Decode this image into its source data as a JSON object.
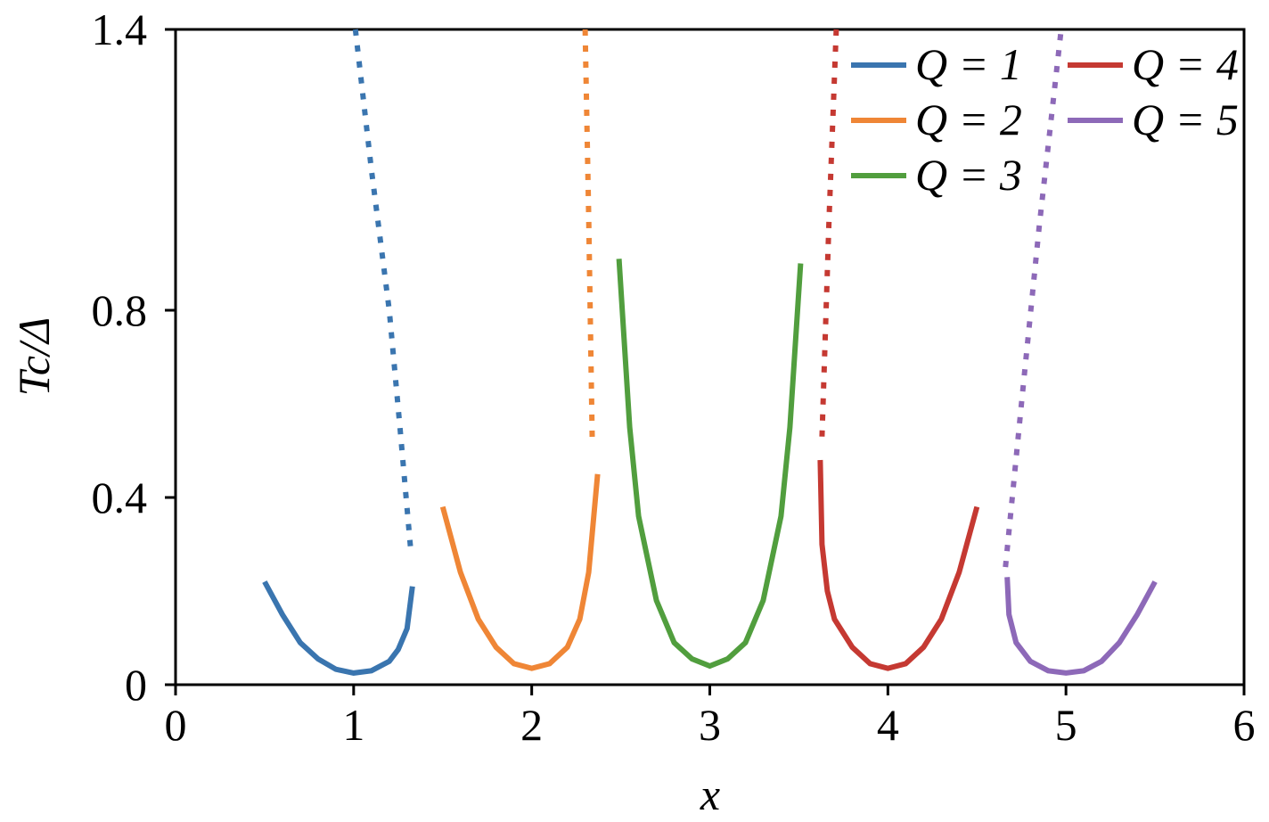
{
  "chart_data": {
    "type": "line",
    "xlabel": "x",
    "ylabel": "Tc/Δ",
    "xlim": [
      0,
      6
    ],
    "ylim": [
      0,
      1.4
    ],
    "xticks": [
      0,
      1,
      2,
      3,
      4,
      5,
      6
    ],
    "yticks": [
      0,
      0.4,
      0.8,
      1.4
    ],
    "legend": "upper right",
    "series": [
      {
        "name": "Q = 1",
        "color": "#3a75af",
        "x": [
          0.5,
          0.6,
          0.7,
          0.8,
          0.9,
          1.0,
          1.1,
          1.2,
          1.25,
          1.3,
          1.33
        ],
        "values": [
          0.22,
          0.15,
          0.09,
          0.055,
          0.033,
          0.025,
          0.03,
          0.05,
          0.075,
          0.12,
          0.21
        ]
      },
      {
        "name": "Q = 2",
        "color": "#ef8636",
        "x": [
          1.5,
          1.6,
          1.7,
          1.8,
          1.9,
          2.0,
          2.1,
          2.2,
          2.27,
          2.32,
          2.37
        ],
        "values": [
          0.38,
          0.24,
          0.14,
          0.08,
          0.045,
          0.035,
          0.045,
          0.08,
          0.14,
          0.24,
          0.45
        ]
      },
      {
        "name": "Q = 3",
        "color": "#519e3e",
        "x": [
          2.49,
          2.55,
          2.6,
          2.7,
          2.8,
          2.9,
          3.0,
          3.1,
          3.2,
          3.3,
          3.4,
          3.45,
          3.51
        ],
        "values": [
          0.91,
          0.55,
          0.36,
          0.18,
          0.09,
          0.055,
          0.04,
          0.055,
          0.09,
          0.18,
          0.36,
          0.55,
          0.9
        ]
      },
      {
        "name": "Q = 4",
        "color": "#c53932",
        "x": [
          3.62,
          3.63,
          3.66,
          3.7,
          3.8,
          3.9,
          4.0,
          4.1,
          4.2,
          4.3,
          4.4,
          4.5
        ],
        "values": [
          0.48,
          0.3,
          0.2,
          0.14,
          0.08,
          0.045,
          0.035,
          0.045,
          0.08,
          0.14,
          0.24,
          0.38
        ]
      },
      {
        "name": "Q = 5",
        "color": "#8d69b8",
        "x": [
          4.67,
          4.68,
          4.72,
          4.8,
          4.9,
          5.0,
          5.1,
          5.2,
          5.3,
          5.4,
          5.5
        ],
        "values": [
          0.23,
          0.15,
          0.09,
          0.05,
          0.03,
          0.025,
          0.03,
          0.05,
          0.09,
          0.15,
          0.22
        ]
      }
    ],
    "dotted_series": [
      {
        "color": "#3a75af",
        "x": [
          1.01,
          1.1,
          1.2,
          1.26,
          1.32
        ],
        "values": [
          1.4,
          1.1,
          0.8,
          0.55,
          0.29
        ]
      },
      {
        "color": "#ef8636",
        "x": [
          2.3,
          2.32,
          2.34
        ],
        "values": [
          1.4,
          1.0,
          0.52
        ]
      },
      {
        "color": "#c53932",
        "x": [
          3.71,
          3.67,
          3.63
        ],
        "values": [
          1.4,
          1.0,
          0.53
        ]
      },
      {
        "color": "#8d69b8",
        "x": [
          4.97,
          4.85,
          4.75,
          4.66
        ],
        "values": [
          1.39,
          0.98,
          0.6,
          0.25
        ]
      }
    ]
  }
}
